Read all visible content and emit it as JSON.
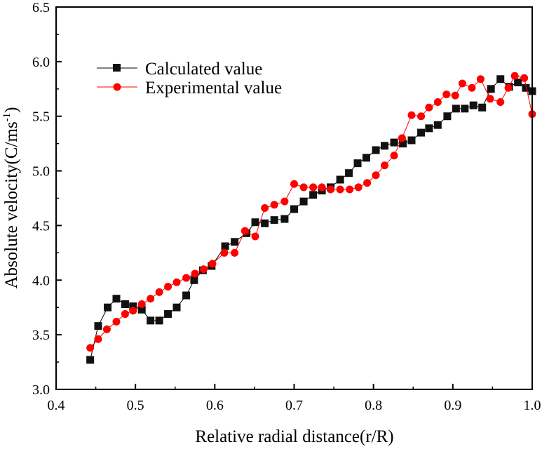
{
  "chart_data": {
    "type": "line",
    "title": "",
    "xlabel": "Relative radial distance(r/R)",
    "ylabel_main": "Absolute velocity(C/ms",
    "ylabel_sup": "-1",
    "ylabel_end": ")",
    "xlim": [
      0.4,
      1.0
    ],
    "ylim": [
      3.0,
      6.5
    ],
    "xticks": [
      "0.4",
      "0.5",
      "0.6",
      "0.7",
      "0.8",
      "0.9",
      "1.0"
    ],
    "yticks": [
      "3.0",
      "3.5",
      "4.0",
      "4.5",
      "5.0",
      "5.5",
      "6.0",
      "6.5"
    ],
    "grid": false,
    "legend_position": "top-left",
    "series": [
      {
        "name": "Calculated value",
        "color": "#000000",
        "marker": "square",
        "x": [
          0.443,
          0.453,
          0.465,
          0.476,
          0.487,
          0.497,
          0.508,
          0.519,
          0.53,
          0.541,
          0.552,
          0.564,
          0.574,
          0.585,
          0.596,
          0.613,
          0.625,
          0.64,
          0.651,
          0.663,
          0.675,
          0.688,
          0.7,
          0.712,
          0.724,
          0.735,
          0.746,
          0.758,
          0.769,
          0.78,
          0.791,
          0.803,
          0.814,
          0.826,
          0.837,
          0.848,
          0.86,
          0.87,
          0.881,
          0.893,
          0.904,
          0.915,
          0.926,
          0.937,
          0.948,
          0.96,
          0.971,
          0.982,
          0.992,
          1.0
        ],
        "y": [
          3.27,
          3.58,
          3.75,
          3.83,
          3.78,
          3.76,
          3.73,
          3.63,
          3.63,
          3.69,
          3.75,
          3.86,
          4.0,
          4.09,
          4.13,
          4.31,
          4.35,
          4.43,
          4.53,
          4.52,
          4.55,
          4.56,
          4.65,
          4.72,
          4.78,
          4.82,
          4.85,
          4.92,
          4.98,
          5.07,
          5.12,
          5.19,
          5.23,
          5.26,
          5.25,
          5.28,
          5.35,
          5.39,
          5.42,
          5.5,
          5.57,
          5.57,
          5.6,
          5.58,
          5.75,
          5.84,
          5.77,
          5.81,
          5.76,
          5.73
        ]
      },
      {
        "name": "Experimental value",
        "color": "#ff0000",
        "marker": "circle",
        "x": [
          0.443,
          0.453,
          0.464,
          0.476,
          0.487,
          0.497,
          0.508,
          0.519,
          0.53,
          0.541,
          0.552,
          0.564,
          0.575,
          0.586,
          0.597,
          0.612,
          0.625,
          0.638,
          0.651,
          0.663,
          0.675,
          0.688,
          0.7,
          0.712,
          0.724,
          0.735,
          0.746,
          0.758,
          0.77,
          0.781,
          0.792,
          0.803,
          0.814,
          0.826,
          0.836,
          0.848,
          0.86,
          0.87,
          0.881,
          0.892,
          0.903,
          0.912,
          0.924,
          0.935,
          0.947,
          0.96,
          0.97,
          0.978,
          0.99,
          1.0
        ],
        "y": [
          3.38,
          3.46,
          3.55,
          3.62,
          3.69,
          3.72,
          3.78,
          3.83,
          3.89,
          3.94,
          3.98,
          4.02,
          4.06,
          4.1,
          4.15,
          4.25,
          4.25,
          4.45,
          4.4,
          4.66,
          4.69,
          4.72,
          4.88,
          4.85,
          4.85,
          4.85,
          4.83,
          4.83,
          4.83,
          4.85,
          4.89,
          4.96,
          5.05,
          5.14,
          5.3,
          5.51,
          5.5,
          5.58,
          5.63,
          5.7,
          5.69,
          5.8,
          5.76,
          5.84,
          5.66,
          5.63,
          5.76,
          5.87,
          5.85,
          5.52
        ]
      }
    ]
  }
}
